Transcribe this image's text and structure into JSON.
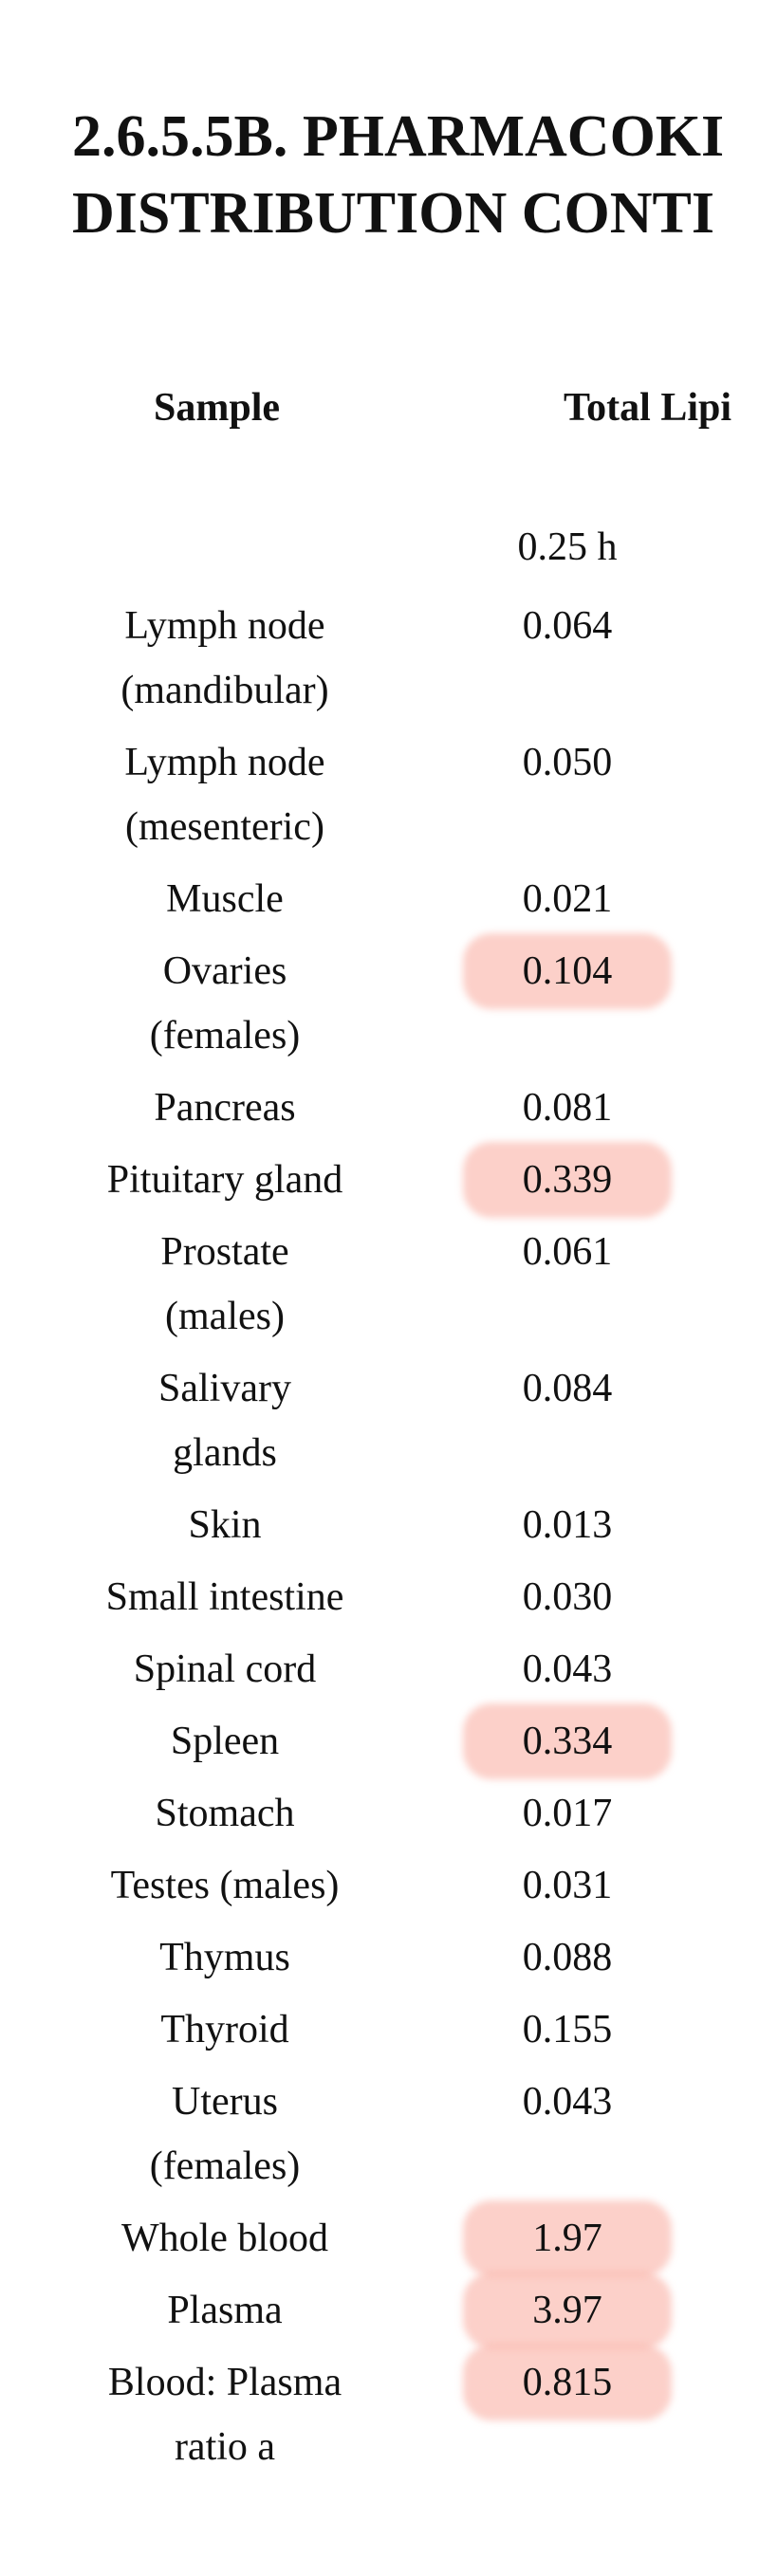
{
  "title_lines": [
    "2.6.5.5B. PHARMACOKI",
    "DISTRIBUTION CONTI"
  ],
  "table": {
    "headers": [
      "Sample",
      "Total Lipi"
    ],
    "time_label": "0.25 h",
    "rows": [
      {
        "sample": [
          "Lymph node",
          "(mandibular)"
        ],
        "value": "0.064",
        "highlighted": false
      },
      {
        "sample": [
          "Lymph node",
          "(mesenteric)"
        ],
        "value": "0.050",
        "highlighted": false
      },
      {
        "sample": [
          "Muscle"
        ],
        "value": "0.021",
        "highlighted": false
      },
      {
        "sample": [
          "Ovaries",
          "(females)"
        ],
        "value": "0.104",
        "highlighted": true
      },
      {
        "sample": [
          "Pancreas"
        ],
        "value": "0.081",
        "highlighted": false
      },
      {
        "sample": [
          "Pituitary gland"
        ],
        "value": "0.339",
        "highlighted": true
      },
      {
        "sample": [
          "Prostate",
          "(males)"
        ],
        "value": "0.061",
        "highlighted": false
      },
      {
        "sample": [
          "Salivary",
          "glands"
        ],
        "value": "0.084",
        "highlighted": false
      },
      {
        "sample": [
          "Skin"
        ],
        "value": "0.013",
        "highlighted": false
      },
      {
        "sample": [
          "Small intestine"
        ],
        "value": "0.030",
        "highlighted": false
      },
      {
        "sample": [
          "Spinal cord"
        ],
        "value": "0.043",
        "highlighted": false
      },
      {
        "sample": [
          "Spleen"
        ],
        "value": "0.334",
        "highlighted": true
      },
      {
        "sample": [
          "Stomach"
        ],
        "value": "0.017",
        "highlighted": false
      },
      {
        "sample": [
          "Testes (males)"
        ],
        "value": "0.031",
        "highlighted": false
      },
      {
        "sample": [
          "Thymus"
        ],
        "value": "0.088",
        "highlighted": false
      },
      {
        "sample": [
          "Thyroid"
        ],
        "value": "0.155",
        "highlighted": false
      },
      {
        "sample": [
          "Uterus",
          "(females)"
        ],
        "value": "0.043",
        "highlighted": false
      },
      {
        "sample": [
          "Whole blood"
        ],
        "value": "1.97",
        "highlighted": true
      },
      {
        "sample": [
          "Plasma"
        ],
        "value": "3.97",
        "highlighted": true
      },
      {
        "sample": [
          "Blood: Plasma",
          "ratio a"
        ],
        "value": "0.815",
        "highlighted": true
      }
    ]
  }
}
